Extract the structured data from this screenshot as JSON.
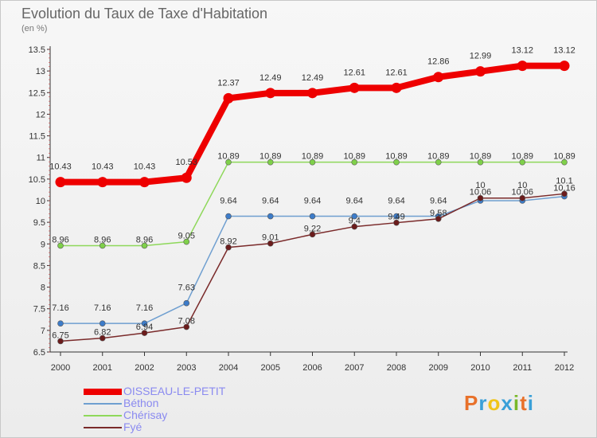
{
  "header": {
    "title": "Evolution du Taux de Taxe d'Habitation",
    "unit": "(en %)"
  },
  "logo": {
    "text": "Proxiti",
    "colors": [
      "#e8712a",
      "#3aa0d8",
      "#f0c419",
      "#3aa0d8",
      "#79b829",
      "#e8712a",
      "#3aa0d8"
    ]
  },
  "chart_data": {
    "type": "line",
    "x": [
      "2000",
      "2001",
      "2002",
      "2003",
      "2004",
      "2005",
      "2006",
      "2007",
      "2008",
      "2009",
      "2010",
      "2011",
      "2012"
    ],
    "ylim": [
      6.5,
      13.5
    ],
    "yticks": [
      "6.5",
      "7",
      "7.5",
      "8",
      "8.5",
      "9",
      "9.5",
      "10",
      "10.5",
      "11",
      "11.5",
      "12",
      "12.5",
      "13",
      "13.5"
    ],
    "grid": false,
    "legend_position": "bottom-left",
    "series": [
      {
        "name": "OISSEAU-LE-PETIT",
        "color": "#ee0000",
        "values": [
          10.43,
          10.43,
          10.43,
          10.53,
          12.37,
          12.49,
          12.49,
          12.61,
          12.61,
          12.86,
          12.99,
          13.12,
          13.12
        ],
        "labels": [
          "10.43",
          "10.43",
          "10.43",
          "10.53",
          "12.37",
          "12.49",
          "12.49",
          "12.61",
          "12.61",
          "12.86",
          "12.99",
          "13.12",
          "13.12"
        ]
      },
      {
        "name": "Béthon",
        "color": "#6f9fd0",
        "values": [
          7.16,
          7.16,
          7.16,
          7.63,
          9.64,
          9.64,
          9.64,
          9.64,
          9.64,
          9.64,
          10.0,
          10.0,
          10.1
        ],
        "labels": [
          "7.16",
          "7.16",
          "7.16",
          "7.63",
          "9.64",
          "9.64",
          "9.64",
          "9.64",
          "9.64",
          "9.64",
          "10",
          "10",
          "10.1"
        ]
      },
      {
        "name": "Chérisay",
        "color": "#8ed85a",
        "values": [
          8.96,
          8.96,
          8.96,
          9.05,
          10.89,
          10.89,
          10.89,
          10.89,
          10.89,
          10.89,
          10.89,
          10.89,
          10.89
        ],
        "labels": [
          "8.96",
          "8.96",
          "8.96",
          "9.05",
          "10.89",
          "10.89",
          "10.89",
          "10.89",
          "10.89",
          "10.89",
          "10.89",
          "10.89",
          "10.89"
        ]
      },
      {
        "name": "Fyé",
        "color": "#7a2a2a",
        "values": [
          6.75,
          6.82,
          6.94,
          7.08,
          8.92,
          9.01,
          9.22,
          9.4,
          9.49,
          9.58,
          10.06,
          10.06,
          10.16
        ],
        "labels": [
          "6.75",
          "6.82",
          "6.94",
          "7.08",
          "8.92",
          "9.01",
          "9.22",
          "9.4",
          "9.49",
          "9.58",
          "10.06",
          "10.06",
          "10.16"
        ]
      }
    ]
  }
}
